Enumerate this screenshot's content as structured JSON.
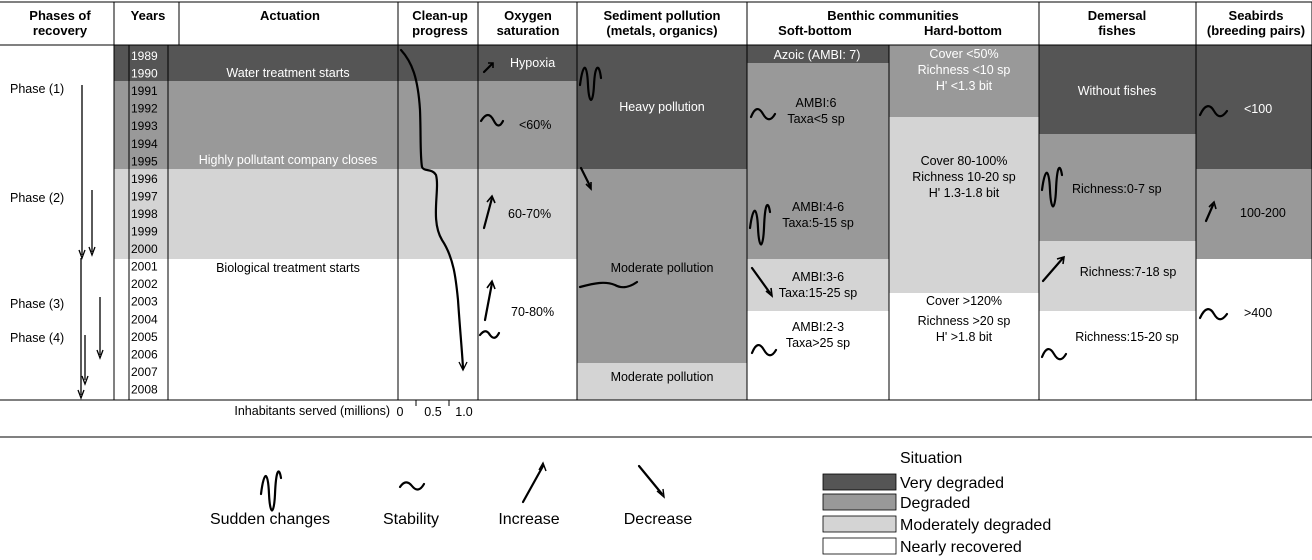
{
  "colors": {
    "very_degraded": "#555555",
    "degraded": "#999999",
    "moderately_degraded": "#d4d4d4",
    "nearly_recovered": "#ffffff"
  },
  "headers": {
    "phases": [
      "Phases of",
      "recovery"
    ],
    "years": "Years",
    "actuation": "Actuation",
    "cleanup": [
      "Clean-up",
      "progress"
    ],
    "oxygen": [
      "Oxygen",
      "saturation"
    ],
    "sediment": [
      "Sediment pollution",
      "(metals, organics)"
    ],
    "benthic": "Benthic communities",
    "soft_bottom": "Soft-bottom",
    "hard_bottom": "Hard-bottom",
    "demersal": [
      "Demersal",
      "fishes"
    ],
    "seabirds": [
      "Seabirds",
      "(breeding pairs)"
    ]
  },
  "years": [
    "1989",
    "1990",
    "1991",
    "1992",
    "1993",
    "1994",
    "1995",
    "1996",
    "1997",
    "1998",
    "1999",
    "2000",
    "2001",
    "2002",
    "2003",
    "2004",
    "2005",
    "2006",
    "2007",
    "2008"
  ],
  "phases": [
    "Phase (1)",
    "Phase (2)",
    "Phase (3)",
    "Phase (4)"
  ],
  "actuation": {
    "water_treatment": "Water treatment starts",
    "company_closes": "Highly pollutant company closes",
    "bio_treatment": "Biological treatment starts"
  },
  "cleanup_axis": {
    "label": "Inhabitants served (millions)",
    "ticks": [
      "0",
      "0.5",
      "1.0"
    ]
  },
  "oxygen": {
    "hypoxia": "Hypoxia",
    "lt60": "<60%",
    "r60_70": "60-70%",
    "r70_80": "70-80%"
  },
  "sediment": {
    "heavy": "Heavy pollution",
    "moderate1": "Moderate pollution",
    "moderate2": "Moderate pollution"
  },
  "soft_bottom": {
    "azoic": "Azoic (AMBI: 7)",
    "s1": [
      "AMBI:6",
      "Taxa<5 sp"
    ],
    "s2": [
      "AMBI:4-6",
      "Taxa:5-15 sp"
    ],
    "s3": [
      "AMBI:3-6",
      "Taxa:15-25 sp"
    ],
    "s4": [
      "AMBI:2-3",
      "Taxa>25 sp"
    ]
  },
  "hard_bottom": {
    "h1": [
      "Cover <50%",
      "Richness <10 sp",
      "H' <1.3 bit"
    ],
    "h2": [
      "Cover 80-100%",
      "Richness 10-20 sp",
      "H' 1.3-1.8 bit"
    ],
    "h3": [
      "Cover >120%",
      "Richness >20 sp",
      "H' >1.8 bit"
    ]
  },
  "demersal": {
    "d1": "Without fishes",
    "d2": "Richness:0-7 sp",
    "d3": "Richness:7-18 sp",
    "d4": "Richness:15-20 sp"
  },
  "seabirds": {
    "b1": "<100",
    "b2": "100-200",
    "b3": ">400"
  },
  "legend": {
    "symbols": [
      "Sudden changes",
      "Stability",
      "Increase",
      "Decrease"
    ],
    "situation_title": "Situation",
    "situations": [
      "Very degraded",
      "Degraded",
      "Moderately degraded",
      "Nearly recovered"
    ]
  }
}
